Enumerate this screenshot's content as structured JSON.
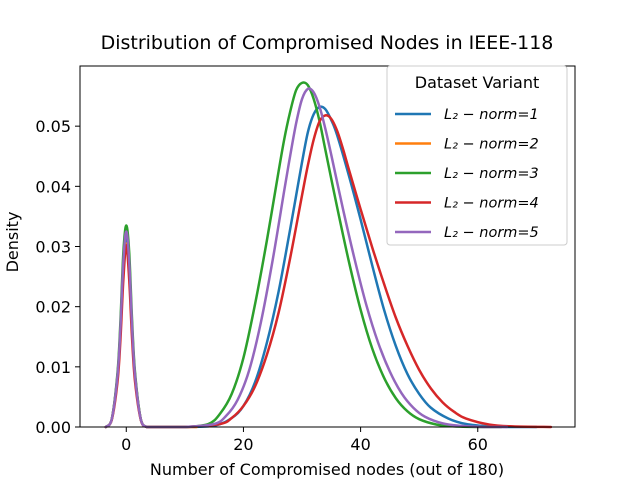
{
  "chart_data": {
    "type": "line",
    "title": "Distribution of Compromised Nodes in IEEE-118",
    "xlabel": "Number of Compromised nodes (out of 180)",
    "ylabel": "Density",
    "xlim": [
      -7.9,
      76.6
    ],
    "ylim": [
      0,
      0.06
    ],
    "x_ticks": [
      0,
      20,
      40,
      60
    ],
    "x_tick_labels": [
      "0",
      "20",
      "40",
      "60"
    ],
    "y_ticks": [
      0.0,
      0.01,
      0.02,
      0.03,
      0.04,
      0.05
    ],
    "y_tick_labels": [
      "0.00",
      "0.01",
      "0.02",
      "0.03",
      "0.04",
      "0.05"
    ],
    "grid": false,
    "legend": {
      "title": "Dataset Variant",
      "placement": "top-right"
    },
    "series": [
      {
        "name": "L₂ − norm=1",
        "color": "#1f77b4",
        "x": [
          -3.5,
          -2.5,
          -1.5,
          -1,
          -0.5,
          0,
          0.5,
          1,
          1.5,
          2.5,
          3.5,
          5,
          10,
          15,
          18,
          20,
          22,
          24,
          26,
          28,
          29,
          30,
          31,
          32,
          33,
          34,
          35,
          36,
          38,
          40,
          42,
          44,
          46,
          48,
          50,
          52,
          55,
          58,
          62,
          66,
          70
        ],
        "y": [
          0,
          0.0012,
          0.0085,
          0.016,
          0.0265,
          0.0315,
          0.0265,
          0.016,
          0.0085,
          0.0012,
          0,
          0,
          0,
          0.0002,
          0.0015,
          0.0035,
          0.0075,
          0.014,
          0.0225,
          0.033,
          0.0385,
          0.044,
          0.049,
          0.052,
          0.0532,
          0.0528,
          0.051,
          0.0485,
          0.0418,
          0.0345,
          0.0268,
          0.0195,
          0.0135,
          0.0088,
          0.0055,
          0.0032,
          0.0014,
          0.0005,
          0.0001,
          0,
          0
        ]
      },
      {
        "name": "L₂ − norm=2",
        "color": "#ff7f0e",
        "x": [
          -3.5,
          -2.5,
          -1.5,
          -1,
          -0.5,
          0,
          0.5,
          1,
          1.5,
          2.5,
          3.5,
          5,
          12
        ],
        "y": [
          0,
          0.0012,
          0.0085,
          0.016,
          0.0265,
          0.0305,
          0.0265,
          0.016,
          0.0085,
          0.0012,
          0,
          0,
          0
        ]
      },
      {
        "name": "L₂ − norm=3",
        "color": "#2ca02c",
        "x": [
          -3.5,
          -2.5,
          -1.5,
          -1,
          -0.5,
          0,
          0.5,
          1,
          1.5,
          2.5,
          3.5,
          5,
          10,
          14,
          16,
          18,
          20,
          22,
          24,
          26,
          27,
          28,
          29,
          30,
          31,
          32,
          33,
          34,
          36,
          38,
          40,
          42,
          44,
          46,
          48,
          50,
          53,
          56,
          60,
          64
        ],
        "y": [
          0,
          0.0012,
          0.009,
          0.0175,
          0.029,
          0.0335,
          0.029,
          0.0175,
          0.009,
          0.0012,
          0,
          0,
          0,
          0.0005,
          0.0022,
          0.0055,
          0.0115,
          0.0205,
          0.031,
          0.0425,
          0.048,
          0.0525,
          0.056,
          0.0572,
          0.0568,
          0.0545,
          0.0508,
          0.046,
          0.0365,
          0.0275,
          0.0195,
          0.013,
          0.0082,
          0.0048,
          0.0026,
          0.0013,
          0.0004,
          0.0001,
          0,
          0
        ]
      },
      {
        "name": "L₂ − norm=4",
        "color": "#d62728",
        "x": [
          -3.5,
          -2.5,
          -1.5,
          -1,
          -0.5,
          0,
          0.5,
          1,
          1.5,
          2.5,
          3.5,
          5,
          10,
          16,
          18,
          20,
          22,
          24,
          26,
          28,
          30,
          31,
          32,
          33,
          34,
          35,
          36,
          37,
          38,
          40,
          42,
          44,
          46,
          48,
          50,
          52,
          54,
          56,
          58,
          62,
          66,
          72.5
        ],
        "y": [
          0,
          0.0011,
          0.0075,
          0.0145,
          0.0245,
          0.0302,
          0.0245,
          0.0145,
          0.0075,
          0.0011,
          0,
          0,
          0,
          0.0005,
          0.0015,
          0.0035,
          0.0068,
          0.012,
          0.019,
          0.0282,
          0.0385,
          0.0435,
          0.0478,
          0.0508,
          0.0518,
          0.0512,
          0.0492,
          0.0462,
          0.0428,
          0.0362,
          0.0298,
          0.0238,
          0.0182,
          0.0135,
          0.0095,
          0.0064,
          0.0041,
          0.0025,
          0.0014,
          0.0004,
          0.0001,
          0
        ]
      },
      {
        "name": "L₂ − norm=5",
        "color": "#9467bd",
        "x": [
          -3.5,
          -2.5,
          -1.5,
          -1,
          -0.5,
          0,
          0.5,
          1,
          1.5,
          2.5,
          3.5,
          5,
          10,
          15,
          17,
          19,
          21,
          23,
          25,
          27,
          28,
          29,
          30,
          31,
          32,
          33,
          34,
          35,
          37,
          39,
          41,
          43,
          45,
          47,
          49,
          51,
          54,
          57,
          61,
          65
        ],
        "y": [
          0,
          0.0012,
          0.0085,
          0.0165,
          0.0275,
          0.0325,
          0.0275,
          0.0165,
          0.0085,
          0.0012,
          0,
          0,
          0,
          0.0005,
          0.0018,
          0.0045,
          0.0095,
          0.0175,
          0.0278,
          0.0395,
          0.0452,
          0.0505,
          0.0545,
          0.0562,
          0.0556,
          0.0532,
          0.0495,
          0.0452,
          0.0362,
          0.0278,
          0.0202,
          0.014,
          0.0092,
          0.0056,
          0.0032,
          0.0017,
          0.0006,
          0.0002,
          0,
          0
        ]
      }
    ]
  }
}
